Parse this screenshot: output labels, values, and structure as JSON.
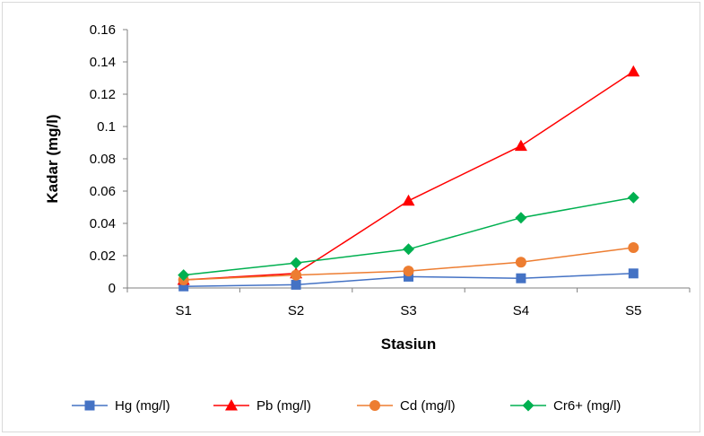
{
  "chart_data": {
    "type": "line",
    "title": "",
    "xlabel": "Stasiun",
    "ylabel": "Kadar (mg/l)",
    "categories": [
      "S1",
      "S2",
      "S3",
      "S4",
      "S5"
    ],
    "ylim": [
      0,
      0.16
    ],
    "yticks": [
      0,
      0.02,
      0.04,
      0.06,
      0.08,
      0.1,
      0.12,
      0.14,
      0.16
    ],
    "ytick_labels": [
      "0",
      "0.02",
      "0.04",
      "0.06",
      "0.08",
      "0.1",
      "0.12",
      "0.14",
      "0.16"
    ],
    "grid": false,
    "legend_position": "bottom",
    "series": [
      {
        "name": "Hg (mg/l)",
        "color": "#4472c4",
        "marker": "square",
        "values": [
          0.001,
          0.002,
          0.007,
          0.006,
          0.009
        ]
      },
      {
        "name": "Pb (mg/l)",
        "color": "#ff0000",
        "marker": "triangle",
        "values": [
          0.005,
          0.009,
          0.054,
          0.088,
          0.134
        ]
      },
      {
        "name": "Cd (mg/l)",
        "color": "#ed7d31",
        "marker": "circle",
        "values": [
          0.005,
          0.008,
          0.0105,
          0.016,
          0.025
        ]
      },
      {
        "name": "Cr6+ (mg/l)",
        "color": "#00b050",
        "marker": "diamond",
        "values": [
          0.008,
          0.0155,
          0.024,
          0.0435,
          0.056
        ]
      }
    ]
  }
}
